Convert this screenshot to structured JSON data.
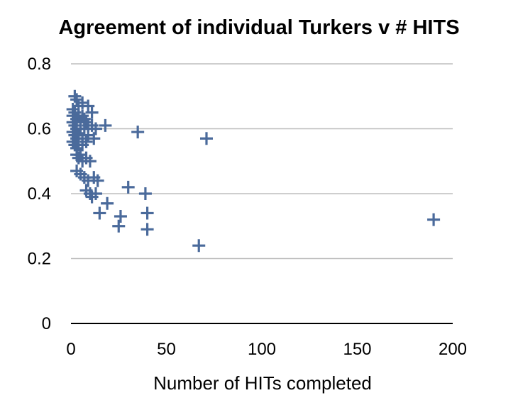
{
  "chart_data": {
    "type": "scatter",
    "title": "Agreement of individual Turkers v # HITS",
    "xlabel": "Number of HITs completed",
    "ylabel": "",
    "xlim": [
      0,
      200
    ],
    "ylim": [
      0,
      0.8
    ],
    "x_ticks": [
      "0",
      "50",
      "100",
      "150",
      "200"
    ],
    "y_ticks": [
      "0",
      "0.2",
      "0.4",
      "0.6",
      "0.8"
    ],
    "grid": true,
    "legend": "none",
    "marker": "plus",
    "marker_color": "#4a6a9b",
    "series": [
      {
        "points": [
          [
            2,
            0.7
          ],
          [
            3,
            0.69
          ],
          [
            4,
            0.67
          ],
          [
            6,
            0.68
          ],
          [
            9,
            0.67
          ],
          [
            11,
            0.65
          ],
          [
            1,
            0.66
          ],
          [
            1,
            0.64
          ],
          [
            2,
            0.65
          ],
          [
            3,
            0.63
          ],
          [
            4,
            0.64
          ],
          [
            5,
            0.62
          ],
          [
            6,
            0.64
          ],
          [
            7,
            0.63
          ],
          [
            8,
            0.62
          ],
          [
            1,
            0.62
          ],
          [
            2,
            0.61
          ],
          [
            3,
            0.6
          ],
          [
            5,
            0.6
          ],
          [
            7,
            0.6
          ],
          [
            9,
            0.61
          ],
          [
            11,
            0.61
          ],
          [
            13,
            0.6
          ],
          [
            18,
            0.61
          ],
          [
            1,
            0.59
          ],
          [
            2,
            0.58
          ],
          [
            3,
            0.57
          ],
          [
            4,
            0.58
          ],
          [
            6,
            0.57
          ],
          [
            9,
            0.58
          ],
          [
            12,
            0.57
          ],
          [
            1,
            0.56
          ],
          [
            2,
            0.55
          ],
          [
            3,
            0.54
          ],
          [
            4,
            0.55
          ],
          [
            6,
            0.55
          ],
          [
            8,
            0.56
          ],
          [
            3,
            0.52
          ],
          [
            4,
            0.51
          ],
          [
            5,
            0.52
          ],
          [
            6,
            0.5
          ],
          [
            8,
            0.51
          ],
          [
            10,
            0.5
          ],
          [
            3,
            0.47
          ],
          [
            5,
            0.46
          ],
          [
            7,
            0.45
          ],
          [
            9,
            0.44
          ],
          [
            12,
            0.45
          ],
          [
            14,
            0.44
          ],
          [
            8,
            0.41
          ],
          [
            10,
            0.4
          ],
          [
            11,
            0.39
          ],
          [
            13,
            0.4
          ],
          [
            30,
            0.42
          ],
          [
            39,
            0.4
          ],
          [
            19,
            0.37
          ],
          [
            15,
            0.34
          ],
          [
            26,
            0.33
          ],
          [
            40,
            0.34
          ],
          [
            25,
            0.3
          ],
          [
            40,
            0.29
          ],
          [
            35,
            0.59
          ],
          [
            71,
            0.57
          ],
          [
            67,
            0.24
          ],
          [
            190,
            0.32
          ]
        ]
      }
    ]
  }
}
